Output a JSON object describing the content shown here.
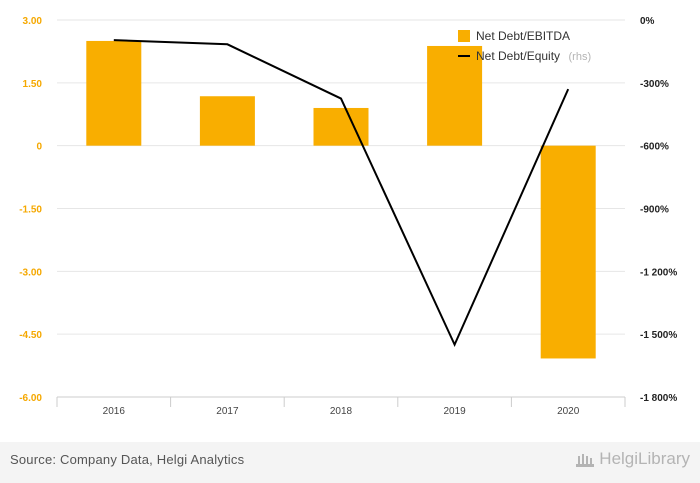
{
  "chart_data": {
    "type": "bar+line",
    "categories": [
      "2016",
      "2017",
      "2018",
      "2019",
      "2020"
    ],
    "series": [
      {
        "name": "Net Debt/EBITDA",
        "type": "bar",
        "axis": "left",
        "color": "#f9ae00",
        "values": [
          2.5,
          1.18,
          0.9,
          2.38,
          -5.08
        ]
      },
      {
        "name": "Net Debt/Equity",
        "name_suffix": "(rhs)",
        "type": "line",
        "axis": "right",
        "color": "#000000",
        "values": [
          -96,
          -116,
          -375,
          -1550,
          -330
        ]
      }
    ],
    "left_axis": {
      "ticks": [
        3.0,
        1.5,
        0,
        -1.5,
        -3.0,
        -4.5,
        -6.0
      ],
      "tick_labels": [
        "3.00",
        "1.50",
        "0",
        "-1.50",
        "-3.00",
        "-4.50",
        "-6.00"
      ],
      "range": [
        -6,
        3
      ]
    },
    "right_axis": {
      "ticks": [
        0,
        -300,
        -600,
        -900,
        -1200,
        -1500,
        -1800
      ],
      "tick_labels": [
        "0%",
        "-300%",
        "-600%",
        "-900%",
        "-1 200%",
        "-1 500%",
        "-1 800%"
      ],
      "range": [
        -1800,
        0
      ]
    },
    "legend_position": "top-right",
    "grid": true
  },
  "footer": {
    "source": "Source: Company Data, Helgi Analytics",
    "brand": "HelgiLibrary"
  }
}
